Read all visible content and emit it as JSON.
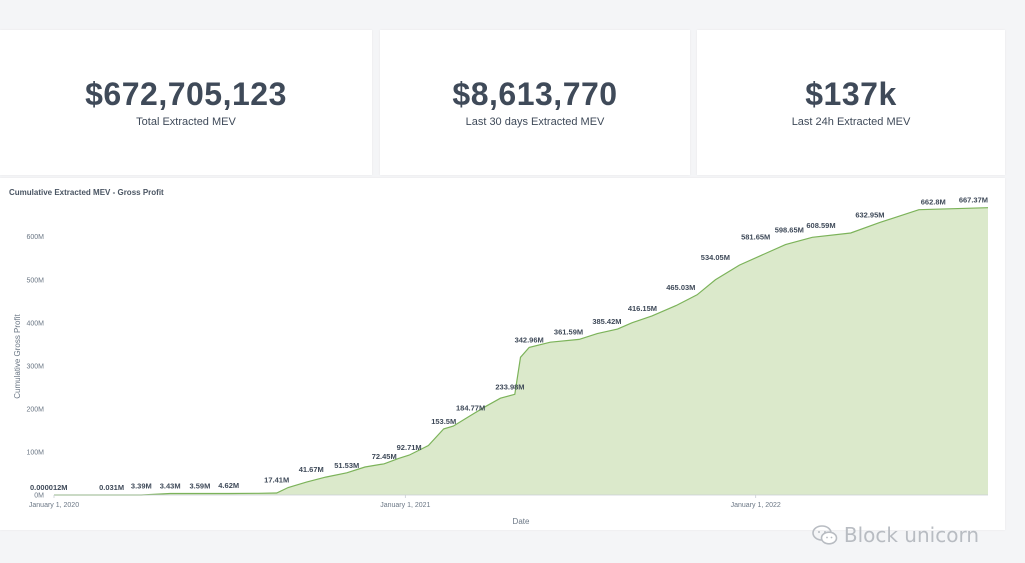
{
  "stats": [
    {
      "value": "$672,705,123",
      "label": "Total Extracted MEV"
    },
    {
      "value": "$8,613,770",
      "label": "Last 30 days Extracted MEV"
    },
    {
      "value": "$137k",
      "label": "Last 24h Extracted MEV"
    }
  ],
  "chart_title": "Cumulative Extracted MEV - Gross Profit",
  "watermark": "Block unicorn",
  "colors": {
    "accent_text": "#3f4a59",
    "area_fill": "#dbe9cb",
    "line": "#7cb35a"
  },
  "chart_data": {
    "type": "area",
    "title": "Cumulative Extracted MEV - Gross Profit",
    "xlabel": "Date",
    "ylabel": "Cumulative Gross Profit",
    "ylim": [
      0,
      690
    ],
    "yticks": [
      0,
      100,
      200,
      300,
      400,
      500,
      600
    ],
    "ytick_labels": [
      "0M",
      "100M",
      "200M",
      "300M",
      "400M",
      "500M",
      "600M"
    ],
    "xlim": [
      "2020-01-01",
      "2022-08-31"
    ],
    "xticks": [
      "2020-01-01",
      "2021-01-01",
      "2022-01-01"
    ],
    "xtick_labels": [
      "January 1, 2020",
      "January 1, 2021",
      "January 1, 2022"
    ],
    "grid": false,
    "series": [
      {
        "x": [
          "2020-01-01",
          "2020-03-01",
          "2020-04-01",
          "2020-05-01",
          "2020-06-01",
          "2020-07-01",
          "2020-08-01",
          "2020-08-20",
          "2020-09-01",
          "2020-09-20",
          "2020-10-10",
          "2020-11-01",
          "2020-11-20",
          "2020-12-10",
          "2020-12-25",
          "2021-01-05",
          "2021-01-25",
          "2021-02-10",
          "2021-02-20",
          "2021-03-10",
          "2021-03-25",
          "2021-04-10",
          "2021-04-25",
          "2021-05-01",
          "2021-05-10",
          "2021-06-01",
          "2021-07-01",
          "2021-07-20",
          "2021-08-10",
          "2021-08-25",
          "2021-09-15",
          "2021-10-10",
          "2021-11-01",
          "2021-11-20",
          "2021-12-15",
          "2022-01-10",
          "2022-02-01",
          "2022-03-01",
          "2022-04-10",
          "2022-05-10",
          "2022-06-20",
          "2022-08-31"
        ],
        "values": [
          1.2e-05,
          0.03,
          0.031,
          3.39,
          3.43,
          3.59,
          3.9,
          4.62,
          17.41,
          30,
          41.67,
          51.53,
          65,
          72.45,
          85,
          92.71,
          115,
          153.5,
          160,
          184.77,
          205,
          225,
          233.98,
          320,
          342.96,
          355,
          361.59,
          375,
          385.42,
          400,
          416.15,
          440,
          465.03,
          500,
          534.05,
          560,
          581.65,
          598.65,
          608.59,
          632.95,
          662.8,
          667.37
        ]
      }
    ],
    "data_labels": [
      {
        "x": "2020-01-01",
        "value": 1.2e-05,
        "text": "0.000012M"
      },
      {
        "x": "2020-03-01",
        "value": 0.031,
        "text": "0.031M"
      },
      {
        "x": "2020-04-01",
        "value": 3.39,
        "text": "3.39M"
      },
      {
        "x": "2020-05-01",
        "value": 3.43,
        "text": "3.43M"
      },
      {
        "x": "2020-06-01",
        "value": 3.59,
        "text": "3.59M"
      },
      {
        "x": "2020-07-01",
        "value": 4.62,
        "text": "4.62M"
      },
      {
        "x": "2020-08-20",
        "value": 17.41,
        "text": "17.41M"
      },
      {
        "x": "2020-09-25",
        "value": 41.67,
        "text": "41.67M"
      },
      {
        "x": "2020-11-01",
        "value": 51.53,
        "text": "51.53M"
      },
      {
        "x": "2020-12-10",
        "value": 72.45,
        "text": "72.45M"
      },
      {
        "x": "2021-01-05",
        "value": 92.71,
        "text": "92.71M"
      },
      {
        "x": "2021-02-10",
        "value": 153.5,
        "text": "153.5M"
      },
      {
        "x": "2021-03-10",
        "value": 184.77,
        "text": "184.77M"
      },
      {
        "x": "2021-04-20",
        "value": 233.98,
        "text": "233.98M"
      },
      {
        "x": "2021-05-10",
        "value": 342.96,
        "text": "342.96M"
      },
      {
        "x": "2021-06-20",
        "value": 361.59,
        "text": "361.59M"
      },
      {
        "x": "2021-07-30",
        "value": 385.42,
        "text": "385.42M"
      },
      {
        "x": "2021-09-05",
        "value": 416.15,
        "text": "416.15M"
      },
      {
        "x": "2021-10-15",
        "value": 465.03,
        "text": "465.03M"
      },
      {
        "x": "2021-11-20",
        "value": 534.05,
        "text": "534.05M"
      },
      {
        "x": "2022-01-01",
        "value": 581.65,
        "text": "581.65M"
      },
      {
        "x": "2022-02-05",
        "value": 598.65,
        "text": "598.65M"
      },
      {
        "x": "2022-03-10",
        "value": 608.59,
        "text": "608.59M"
      },
      {
        "x": "2022-04-30",
        "value": 632.95,
        "text": "632.95M"
      },
      {
        "x": "2022-07-05",
        "value": 662.8,
        "text": "662.8M"
      },
      {
        "x": "2022-08-15",
        "value": 667.37,
        "text": "667.37M"
      }
    ]
  }
}
